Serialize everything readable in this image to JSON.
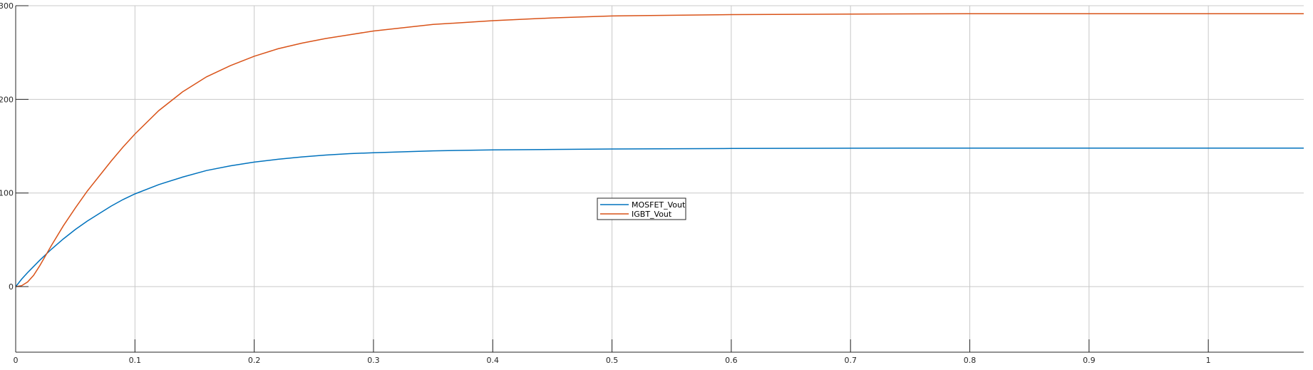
{
  "chart_data": {
    "type": "line",
    "title": "",
    "xlabel": "",
    "ylabel": "",
    "xlim": [
      0,
      1.08
    ],
    "ylim": [
      -70,
      300
    ],
    "xticks": [
      0,
      0.1,
      0.2,
      0.3,
      0.4,
      0.5,
      0.6,
      0.7,
      0.8,
      0.9,
      1
    ],
    "xtick_labels": [
      "0",
      "0.1",
      "0.2",
      "0.3",
      "0.4",
      "0.5",
      "0.6",
      "0.7",
      "0.8",
      "0.9",
      "1"
    ],
    "yticks": [
      0,
      100,
      200,
      300
    ],
    "ytick_labels": [
      "0",
      "100",
      "200",
      "300"
    ],
    "grid": true,
    "legend_position": "center",
    "series": [
      {
        "name": "MOSFET_Vout",
        "color": "#0072BD",
        "x": [
          0,
          0.005,
          0.01,
          0.02,
          0.03,
          0.04,
          0.05,
          0.06,
          0.07,
          0.08,
          0.09,
          0.1,
          0.12,
          0.14,
          0.16,
          0.18,
          0.2,
          0.22,
          0.24,
          0.26,
          0.28,
          0.3,
          0.35,
          0.4,
          0.45,
          0.5,
          0.6,
          0.7,
          0.8,
          0.9,
          1.0,
          1.08
        ],
        "y": [
          0,
          8,
          15,
          28,
          40,
          51,
          61,
          70,
          78,
          86,
          93,
          99,
          109,
          117,
          124,
          129,
          133,
          136,
          138.5,
          140.5,
          142,
          143,
          145,
          146,
          146.5,
          147,
          147.5,
          147.8,
          148,
          148,
          148,
          148
        ]
      },
      {
        "name": "IGBT_Vout",
        "color": "#D95319",
        "x": [
          0,
          0.005,
          0.01,
          0.015,
          0.02,
          0.03,
          0.04,
          0.05,
          0.06,
          0.07,
          0.08,
          0.09,
          0.1,
          0.12,
          0.14,
          0.16,
          0.18,
          0.2,
          0.22,
          0.24,
          0.26,
          0.28,
          0.3,
          0.35,
          0.4,
          0.45,
          0.5,
          0.6,
          0.7,
          0.8,
          0.9,
          1.0,
          1.08
        ],
        "y": [
          0,
          1,
          5,
          12,
          22,
          44,
          65,
          84,
          102,
          118,
          134,
          149,
          163,
          188,
          208,
          224,
          236,
          246,
          254,
          260,
          265,
          269,
          273,
          280,
          284,
          287,
          289,
          290.5,
          291,
          291.5,
          291.5,
          291.5,
          291.5
        ]
      }
    ]
  }
}
